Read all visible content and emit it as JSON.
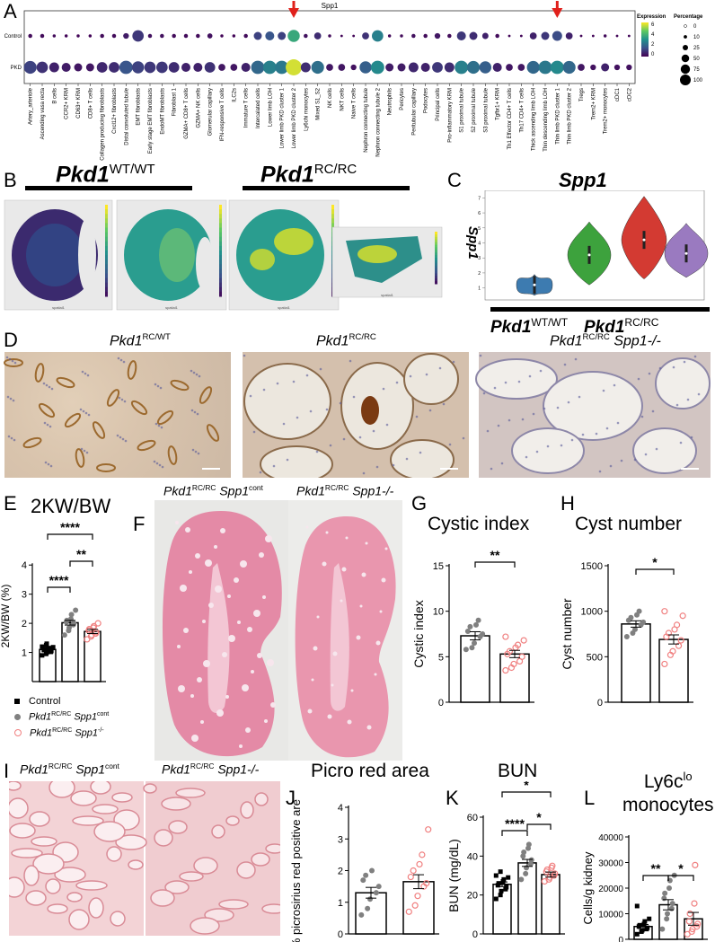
{
  "panels": {
    "A": "A",
    "B": "B",
    "C": "C",
    "D": "D",
    "E": "E",
    "F": "F",
    "G": "G",
    "H": "H",
    "I": "I",
    "J": "J",
    "K": "K",
    "L": "L"
  },
  "dotplot": {
    "title": "Spp1",
    "rows": [
      "Control",
      "PKD"
    ],
    "legend_expression_title": "Expression",
    "legend_percentage_title": "Percentage",
    "expression_ticks": [
      "6",
      "4",
      "2",
      "0"
    ],
    "percentage_ticks": [
      "0",
      "10",
      "25",
      "50",
      "75",
      "100"
    ],
    "arrow_color": "#e0201b",
    "cell_types": [
      "Artery_arteriole",
      "Ascending vasa recta",
      "B cells",
      "CCR2+ KRM",
      "CD63+ KRM",
      "CD8+ T cells",
      "Collagen producing fibroblasts",
      "Cxcl12+ fibroblasts",
      "Distal convoluted tubule",
      "EMT fibroblasts",
      "Early stage EMT fibroblasts",
      "EndoMT fibroblasts",
      "Fibroblast 1",
      "GZMA+ CD8+ T cells",
      "GZMA+ NK cells",
      "Glomerular capillary",
      "IFN-responsive T cells",
      "ILC2s",
      "Immature T cells",
      "Intercalated cells",
      "Lower limb LOH",
      "Lower limb PKD cluster 1",
      "Lower limb PKD cluster 2",
      "Ly6chi monocytes",
      "Mixed S1_S2",
      "NK cells",
      "NKT cells",
      "Naive T cells",
      "Nephron connecting tubule",
      "Nephron connecting tubule 2",
      "Neutrophils",
      "Pericytes",
      "Peritubular capillary",
      "Podocytes",
      "Principal cells",
      "Pro-inflammatory KRM",
      "S1 proximal tubule",
      "S2 proximal tubule",
      "S3 proximal tubule",
      "Tgfbr1+ KRM",
      "Th1 Effector CD4+ T cells",
      "Th17 CD4+ T cells",
      "Thick ascending limb LOH",
      "Thin descending limb LOH",
      "Thin limb PKD cluster 1",
      "Thin limb PKD cluster 2",
      "Tregs",
      "Trem2+ KRM",
      "Trem2+ monocytes",
      "cDC1",
      "cDC2"
    ],
    "control_expr": [
      0.2,
      0.2,
      0.2,
      0.1,
      0.1,
      0.1,
      0.2,
      0.2,
      0.5,
      1.0,
      0.3,
      0.3,
      0.2,
      0.2,
      0.2,
      0.3,
      0.1,
      0.1,
      0.2,
      1.2,
      1.6,
      1.2,
      3.6,
      0.3,
      0.8,
      0.2,
      0.1,
      0.1,
      0.9,
      2.6,
      0.2,
      0.2,
      0.3,
      0.2,
      0.4,
      0.2,
      1.0,
      0.8,
      0.6,
      0.2,
      0.1,
      0.1,
      0.6,
      1.0,
      1.4,
      0.6,
      0.1,
      0.1,
      0.2,
      0.1,
      0.1
    ],
    "control_pct": [
      5,
      5,
      3,
      3,
      3,
      3,
      5,
      5,
      10,
      40,
      5,
      5,
      5,
      5,
      5,
      8,
      3,
      3,
      5,
      20,
      25,
      20,
      45,
      5,
      15,
      3,
      2,
      2,
      15,
      40,
      3,
      3,
      5,
      5,
      10,
      5,
      25,
      20,
      12,
      5,
      2,
      2,
      15,
      20,
      30,
      15,
      2,
      2,
      3,
      2,
      2
    ],
    "pkd_expr": [
      1.2,
      0.9,
      0.6,
      0.5,
      0.4,
      0.4,
      0.7,
      0.8,
      1.6,
      1.2,
      1.0,
      1.0,
      0.8,
      0.6,
      0.6,
      0.9,
      0.4,
      0.4,
      0.6,
      2.0,
      2.6,
      2.4,
      5.6,
      0.8,
      2.2,
      0.4,
      0.4,
      0.3,
      1.8,
      2.8,
      0.5,
      0.5,
      0.7,
      0.6,
      1.0,
      0.8,
      2.6,
      2.2,
      1.8,
      0.6,
      0.4,
      0.4,
      2.0,
      2.4,
      2.8,
      2.0,
      0.4,
      0.3,
      0.6,
      0.3,
      0.3
    ],
    "pkd_pct": [
      50,
      40,
      30,
      25,
      20,
      20,
      35,
      35,
      55,
      45,
      40,
      40,
      35,
      25,
      25,
      35,
      15,
      15,
      25,
      55,
      55,
      55,
      80,
      30,
      50,
      15,
      15,
      10,
      45,
      55,
      20,
      20,
      30,
      25,
      35,
      30,
      55,
      50,
      45,
      25,
      15,
      15,
      50,
      55,
      55,
      50,
      15,
      10,
      20,
      10,
      10
    ]
  },
  "panelB": {
    "groups": [
      {
        "gene": "Pkd1",
        "genotype": "WT/WT"
      },
      {
        "gene": "Pkd1",
        "genotype": "RC/RC"
      }
    ],
    "axis_tiny": "spatial1",
    "colorbar_ticks": [
      "7",
      "6",
      "5",
      "4",
      "3",
      "2",
      "1",
      "0"
    ]
  },
  "panelC": {
    "title": "Spp1",
    "ylabel": "Spp1",
    "yticks": [
      "1",
      "2",
      "3",
      "4",
      "5",
      "6",
      "7"
    ],
    "groups": [
      {
        "gene": "Pkd1",
        "genotype": "WT/WT"
      },
      {
        "gene": "Pkd1",
        "genotype": "RC/RC"
      }
    ],
    "violin_colors": [
      "#3d7bb0",
      "#3da23d",
      "#d33a32",
      "#9a7ac0"
    ]
  },
  "panelD": {
    "labels": [
      {
        "gene": "Pkd1",
        "genotype": "RC/WT",
        "extra": ""
      },
      {
        "gene": "Pkd1",
        "genotype": "RC/RC",
        "extra": ""
      },
      {
        "gene": "Pkd1",
        "genotype": "RC/RC",
        "extra": "Spp1-/-"
      }
    ]
  },
  "panelF": {
    "labels": [
      {
        "gene": "Pkd1",
        "genotype": "RC/RC",
        "extra_gene": "Spp1",
        "extra_sup": "cont"
      },
      {
        "gene": "Pkd1",
        "genotype": "RC/RC",
        "extra_gene": "Spp1-/-",
        "extra_sup": ""
      }
    ]
  },
  "panelI": {
    "labels": [
      {
        "gene": "Pkd1",
        "genotype": "RC/RC",
        "extra_gene": "Spp1",
        "extra_sup": "cont"
      },
      {
        "gene": "Pkd1",
        "genotype": "RC/RC",
        "extra_gene": "Spp1-/-",
        "extra_sup": ""
      }
    ]
  },
  "legendE": {
    "items": [
      {
        "label": "Control",
        "marker": "square",
        "color": "#000000"
      },
      {
        "label_gene": "Pkd1",
        "label_sup": "RC/RC",
        "label_extra": "Spp1",
        "label_extra_sup": "cont",
        "marker": "circle",
        "color": "#808080"
      },
      {
        "label_gene": "Pkd1",
        "label_sup": "RC/RC",
        "label_extra": "Spp1",
        "label_extra_sup": "-/-",
        "marker": "open-circle",
        "color": "#f08080"
      }
    ]
  },
  "chart_data": [
    {
      "panel": "E",
      "type": "bar",
      "title": "2KW/BW",
      "ylabel": "2KW/BW (%)",
      "categories": [
        "Control",
        "Pkd1 RC/RC Spp1 cont",
        "Pkd1 RC/RC Spp1 -/-"
      ],
      "values": [
        1.1,
        2.02,
        1.72
      ],
      "sem": [
        0.05,
        0.08,
        0.07
      ],
      "ylim": [
        0,
        4.5
      ],
      "yticks": [
        1,
        2,
        3,
        4
      ],
      "points": [
        [
          0.9,
          0.95,
          1.0,
          1.02,
          1.05,
          1.08,
          1.1,
          1.12,
          1.15,
          1.18,
          1.2,
          1.25,
          1.3
        ],
        [
          1.6,
          1.75,
          1.85,
          1.95,
          2.0,
          2.05,
          2.1,
          2.15,
          2.3,
          2.45
        ],
        [
          1.45,
          1.55,
          1.6,
          1.65,
          1.7,
          1.75,
          1.8,
          1.85,
          1.9,
          2.0
        ]
      ],
      "sig": [
        {
          "from": 0,
          "to": 2,
          "label": "****"
        },
        {
          "from": 1,
          "to": 2,
          "label": "**"
        },
        {
          "from": 0,
          "to": 1,
          "label": "****"
        }
      ]
    },
    {
      "panel": "G",
      "type": "bar",
      "title": "Cystic index",
      "ylabel": "Cystic index",
      "categories": [
        "Pkd1 RC/RC Spp1 cont",
        "Pkd1 RC/RC Spp1 -/-"
      ],
      "values": [
        7.3,
        5.3
      ],
      "sem": [
        0.45,
        0.4
      ],
      "ylim": [
        0,
        15
      ],
      "yticks": [
        0,
        5,
        10,
        15
      ],
      "points": [
        [
          5.8,
          6.0,
          6.5,
          7.2,
          7.5,
          7.8,
          8.3,
          8.5,
          9.0
        ],
        [
          3.5,
          3.8,
          4.2,
          4.5,
          5.0,
          5.3,
          5.6,
          6.0,
          6.3,
          6.8,
          7.2
        ]
      ],
      "sig": [
        {
          "from": 0,
          "to": 1,
          "label": "**"
        }
      ]
    },
    {
      "panel": "H",
      "type": "bar",
      "title": "Cyst number",
      "ylabel": "Cyst number",
      "categories": [
        "Pkd1 RC/RC Spp1 cont",
        "Pkd1 RC/RC Spp1 -/-"
      ],
      "values": [
        860,
        690
      ],
      "sem": [
        35,
        50
      ],
      "ylim": [
        0,
        1500
      ],
      "yticks": [
        0,
        500,
        1000,
        1500
      ],
      "points": [
        [
          720,
          760,
          800,
          850,
          880,
          900,
          930,
          960,
          1000
        ],
        [
          420,
          520,
          560,
          620,
          680,
          720,
          760,
          800,
          850,
          950,
          1000
        ]
      ],
      "sig": [
        {
          "from": 0,
          "to": 1,
          "label": "*"
        }
      ]
    },
    {
      "panel": "J",
      "type": "bar",
      "title": "Picro red area",
      "ylabel": "% picrosirius red positive area",
      "categories": [
        "Pkd1 RC/RC Spp1 cont",
        "Pkd1 RC/RC Spp1 -/-"
      ],
      "values": [
        1.3,
        1.65
      ],
      "sem": [
        0.17,
        0.22
      ],
      "ylim": [
        0,
        4
      ],
      "yticks": [
        0,
        1,
        2,
        3,
        4
      ],
      "points": [
        [
          0.6,
          0.8,
          1.1,
          1.3,
          1.5,
          1.7,
          1.85,
          2.0
        ],
        [
          0.7,
          0.9,
          1.2,
          1.5,
          1.6,
          1.8,
          2.0,
          2.2,
          2.5,
          3.3
        ]
      ],
      "sig": []
    },
    {
      "panel": "K",
      "type": "bar",
      "title": "BUN",
      "ylabel": "BUN (mg/dL)",
      "categories": [
        "Control",
        "Pkd1 RC/RC Spp1 cont",
        "Pkd1 RC/RC Spp1 -/-"
      ],
      "values": [
        25.5,
        36.5,
        30.5
      ],
      "sem": [
        1.2,
        1.8,
        1.3
      ],
      "ylim": [
        0,
        60
      ],
      "yticks": [
        0,
        20,
        40,
        60
      ],
      "points": [
        [
          18,
          20,
          22,
          23,
          24,
          25,
          26,
          27,
          28,
          29,
          30,
          32
        ],
        [
          28,
          31,
          34,
          36,
          38,
          40,
          42,
          44,
          46
        ],
        [
          27,
          28,
          29,
          30,
          31,
          32,
          33,
          34,
          35
        ]
      ],
      "sig": [
        {
          "from": 0,
          "to": 2,
          "label": "*"
        },
        {
          "from": 1,
          "to": 2,
          "label": "*"
        },
        {
          "from": 0,
          "to": 1,
          "label": "****"
        }
      ]
    },
    {
      "panel": "L",
      "type": "bar",
      "title": "Ly6clo monocytes",
      "title_main": "Ly6c",
      "title_sup": "lo",
      "title_line2": "monocytes",
      "ylabel": "Cells/g kidney",
      "categories": [
        "Control",
        "Pkd1 RC/RC Spp1 cont",
        "Pkd1 RC/RC Spp1 -/-"
      ],
      "values": [
        5000,
        13500,
        8000
      ],
      "sem": [
        800,
        2000,
        2500
      ],
      "ylim": [
        0,
        40000
      ],
      "yticks": [
        0,
        10000,
        20000,
        30000,
        40000
      ],
      "points": [
        [
          2000,
          3000,
          3500,
          4000,
          4500,
          5000,
          5500,
          6000,
          7000,
          8000,
          13000
        ],
        [
          4000,
          8000,
          10000,
          12000,
          14000,
          16000,
          18000,
          20000,
          23000,
          25000
        ],
        [
          2000,
          3000,
          4000,
          5000,
          6000,
          7000,
          10000,
          14000,
          29000
        ]
      ],
      "sig": [
        {
          "from": 0,
          "to": 1,
          "label": "**"
        },
        {
          "from": 1,
          "to": 2,
          "label": "*"
        }
      ]
    }
  ],
  "colors": {
    "control": "#000000",
    "spp1cont": "#808080",
    "spp1ko": "#f08080"
  }
}
